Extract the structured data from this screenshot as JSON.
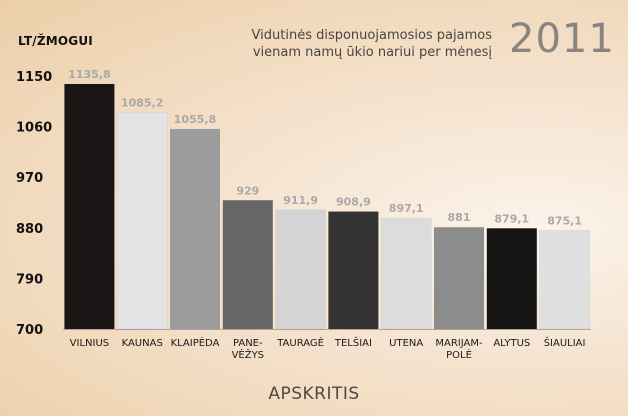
{
  "chart_data": {
    "type": "bar",
    "title_line1": "Vidutinės disponuojamosios pajamos",
    "title_line2": "vienam namų ūkio nariui per mėnesį",
    "year": "2011",
    "ylabel": "LT/ŽMOGUI",
    "xlabel": "APSKRITIS",
    "ylim": [
      700,
      1150
    ],
    "yticks": [
      700,
      790,
      880,
      970,
      1060,
      1150
    ],
    "grid": false,
    "categories": [
      [
        "VILNIUS"
      ],
      [
        "KAUNAS"
      ],
      [
        "KLAIPĖDA"
      ],
      [
        "PANE-",
        "VĖŽYS"
      ],
      [
        "TAURAGĖ"
      ],
      [
        "TELŠIAI"
      ],
      [
        "UTENA"
      ],
      [
        "MARIJAM-",
        "POLĖ"
      ],
      [
        "ALYTUS"
      ],
      [
        "ŠIAULIAI"
      ]
    ],
    "values": [
      1135.8,
      1085.2,
      1055.8,
      929,
      911.9,
      908.9,
      897.1,
      881,
      879.1,
      875.1
    ],
    "value_labels": [
      "1135,8",
      "1085,2",
      "1055,8",
      "929",
      "911,9",
      "908,9",
      "897,1",
      "881",
      "879,1",
      "875,1"
    ],
    "bar_colors": [
      "#1a1616",
      "#e4e3e6",
      "#9c9c9c",
      "#666666",
      "#d4d4d4",
      "#333333",
      "#dcdcdc",
      "#8c8c8c",
      "#141414",
      "#e0e0e0"
    ],
    "value_label_color": "#a9a9a9"
  }
}
